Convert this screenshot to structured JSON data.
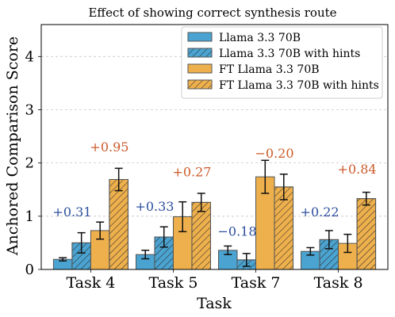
{
  "chart_data": {
    "type": "bar",
    "title": "Effect of showing correct synthesis route",
    "xlabel": "Task",
    "ylabel": "Anchored Comparison Score",
    "categories": [
      "Task 4",
      "Task 5",
      "Task 7",
      "Task 8"
    ],
    "ylim": [
      0,
      4.6
    ],
    "yticks": [
      0,
      1,
      2,
      3,
      4
    ],
    "grid": true,
    "legend_position": "top-right",
    "series": [
      {
        "name": "Llama 3.3 70B",
        "color": "#4aa3d0",
        "hatched": false,
        "values": [
          0.19,
          0.28,
          0.36,
          0.34
        ],
        "errors": [
          0.03,
          0.08,
          0.08,
          0.07
        ]
      },
      {
        "name": "Llama 3.3 70B with hints",
        "color": "#4aa3d0",
        "hatched": true,
        "values": [
          0.5,
          0.61,
          0.18,
          0.56
        ],
        "errors": [
          0.19,
          0.19,
          0.12,
          0.17
        ]
      },
      {
        "name": "FT Llama 3.3 70B",
        "color": "#eeb04c",
        "hatched": false,
        "values": [
          0.73,
          0.99,
          1.74,
          0.49
        ],
        "errors": [
          0.16,
          0.28,
          0.31,
          0.17
        ]
      },
      {
        "name": "FT Llama 3.3 70B with hints",
        "color": "#eeb04c",
        "hatched": true,
        "values": [
          1.69,
          1.26,
          1.55,
          1.33
        ],
        "errors": [
          0.21,
          0.17,
          0.24,
          0.12
        ]
      }
    ],
    "annotations": [
      {
        "text": "+0.31",
        "category": "Task 4",
        "color": "#2c4f9e",
        "pair": "base",
        "y": 1.0
      },
      {
        "text": "+0.95",
        "category": "Task 4",
        "color": "#cc5a2a",
        "pair": "ft",
        "y": 2.22
      },
      {
        "text": "+0.33",
        "category": "Task 5",
        "color": "#2c4f9e",
        "pair": "base",
        "y": 1.1
      },
      {
        "text": "+0.27",
        "category": "Task 5",
        "color": "#cc5a2a",
        "pair": "ft",
        "y": 1.75
      },
      {
        "text": "−0.18",
        "category": "Task 7",
        "color": "#2c4f9e",
        "pair": "base",
        "y": 0.63
      },
      {
        "text": "−0.20",
        "category": "Task 7",
        "color": "#cc5a2a",
        "pair": "ft",
        "y": 2.1
      },
      {
        "text": "+0.22",
        "category": "Task 8",
        "color": "#2c4f9e",
        "pair": "base",
        "y": 1.0
      },
      {
        "text": "+0.84",
        "category": "Task 8",
        "color": "#cc5a2a",
        "pair": "ft",
        "y": 1.8
      }
    ]
  }
}
